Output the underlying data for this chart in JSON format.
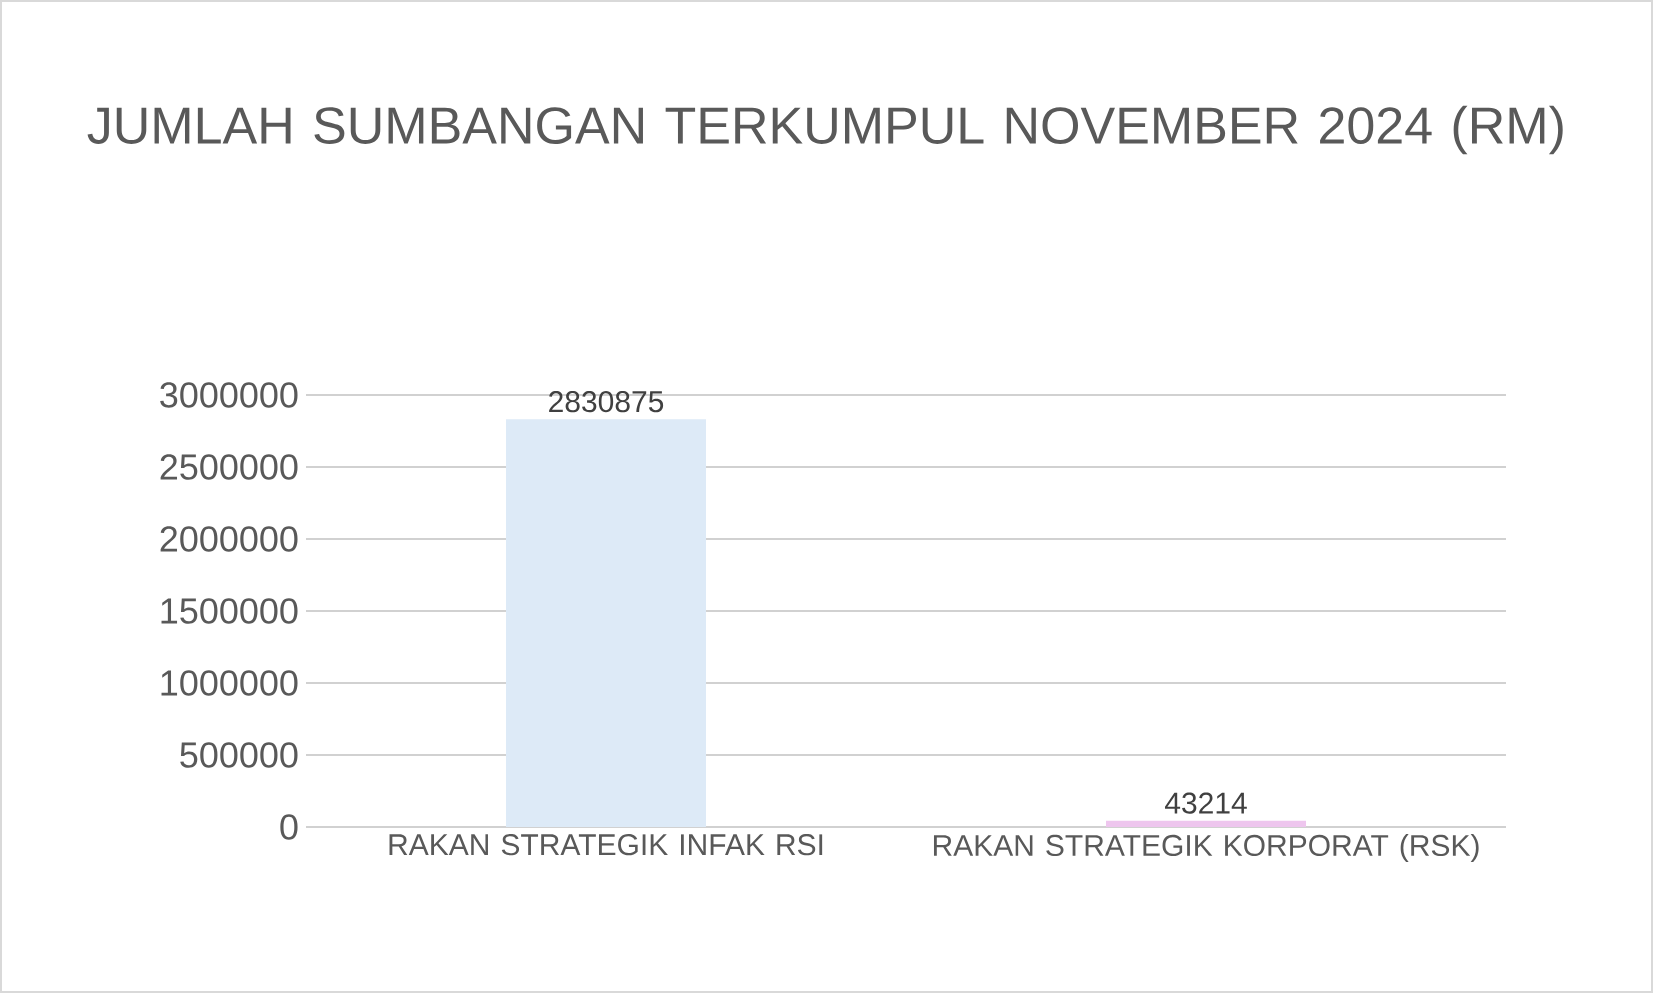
{
  "chart_data": {
    "type": "bar",
    "title": "JUMLAH SUMBANGAN TERKUMPUL NOVEMBER 2024 (RM)",
    "categories": [
      "RAKAN STRATEGIK INFAK RSI",
      "RAKAN STRATEGIK KORPORAT (RSK)"
    ],
    "values": [
      2830875,
      43214
    ],
    "colors": [
      "#ddeaf7",
      "#eec6ee"
    ],
    "ylim": [
      0,
      3000000
    ],
    "yticks": [
      0,
      500000,
      1000000,
      1500000,
      2000000,
      2500000,
      3000000
    ],
    "grid": "y",
    "data_labels": true
  }
}
